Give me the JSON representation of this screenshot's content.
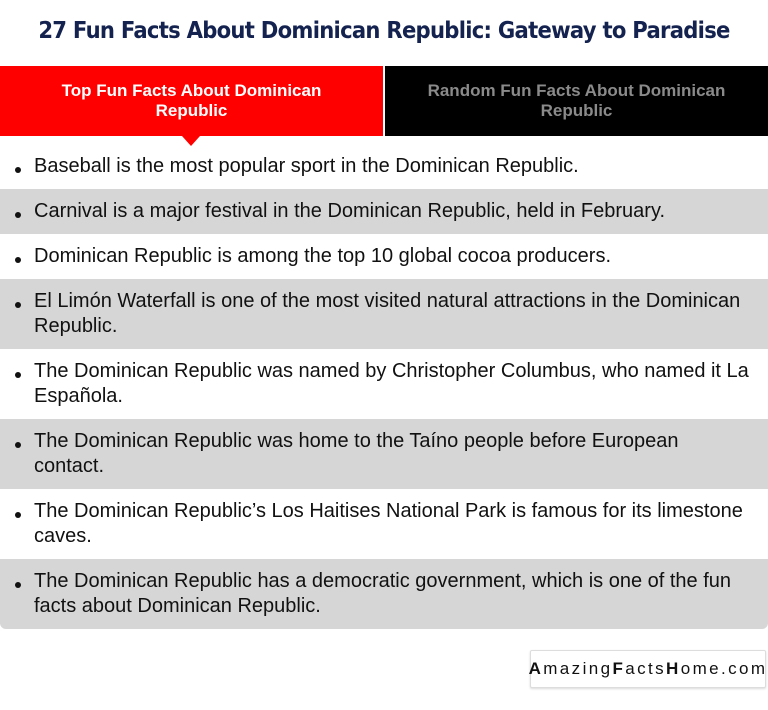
{
  "title": "27 Fun Facts About Dominican Republic: Gateway to Paradise",
  "tabs": [
    {
      "label": "Top Fun Facts About Dominican Republic",
      "active": true
    },
    {
      "label": "Random Fun Facts About Dominican Republic",
      "active": false
    }
  ],
  "facts": [
    "Baseball is the most popular sport in the Dominican Republic.",
    "Carnival is a major festival in the Dominican Republic, held in February.",
    "Dominican Republic is among the top 10 global cocoa producers.",
    "El Limón Waterfall is one of the most visited natural attractions in the Dominican Republic.",
    "The Dominican Republic was named by Christopher Columbus, who named it La Española.",
    "The Dominican Republic was home to the Taíno people before European contact.",
    "The Dominican Republic’s Los Haitises National Park is famous for its limestone caves.",
    "The Dominican Republic has a democratic government, which is one of the fun facts about Dominican Republic."
  ],
  "watermark": "AmazingFactsHome.com",
  "colors": {
    "title": "#14224f",
    "active_tab": "#ff0000",
    "inactive_tab": "#000000",
    "alt_row": "#d6d6d6"
  }
}
